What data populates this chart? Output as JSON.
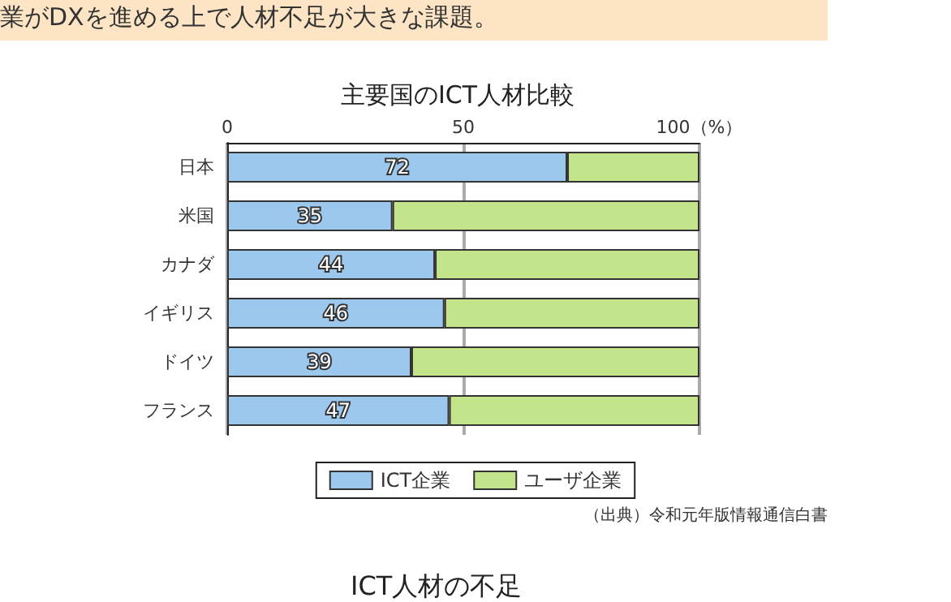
{
  "chart_data": {
    "type": "bar",
    "orientation": "horizontal",
    "stacked": true,
    "title": "主要国のICT人材比較",
    "categories": [
      "日本",
      "米国",
      "カナダ",
      "イギリス",
      "ドイツ",
      "フランス"
    ],
    "series": [
      {
        "name": "ICT企業",
        "color": "#9dc8ee",
        "values": [
          72,
          35,
          44,
          46,
          39,
          47
        ],
        "value_labels": [
          "72",
          "35",
          "44",
          "46",
          "39",
          "47"
        ]
      },
      {
        "name": "ユーザ企業",
        "color": "#c3e48a",
        "values": [
          28,
          65,
          56,
          54,
          61,
          53
        ]
      }
    ],
    "xlim": [
      0,
      100
    ],
    "xticks": [
      0,
      50,
      {
        "value": 100,
        "label": "100（%）"
      }
    ],
    "grid": "x",
    "legend": "bottom",
    "annotations": [
      "業がDXを進める上で人材不足が大きな課題。",
      "（出典）令和元年版情報通信白書",
      "ICT人材の不足"
    ]
  }
}
